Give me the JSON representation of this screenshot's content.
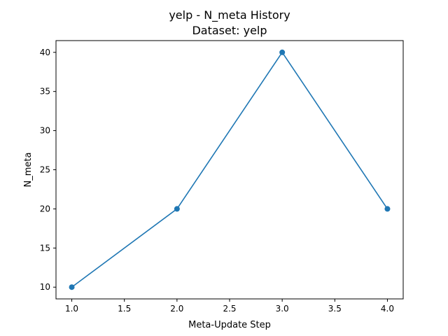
{
  "chart_data": {
    "type": "line",
    "title": "yelp - N_meta History",
    "subtitle": "Dataset: yelp",
    "xlabel": "Meta-Update Step",
    "ylabel": "N_meta",
    "x": [
      1.0,
      2.0,
      3.0,
      4.0
    ],
    "series": [
      {
        "values": [
          10,
          20,
          40,
          20
        ],
        "color": "#1f77b4",
        "marker": "circle"
      }
    ],
    "xlim": [
      0.85,
      4.15
    ],
    "ylim": [
      8.5,
      41.5
    ],
    "xticks": [
      1.0,
      1.5,
      2.0,
      2.5,
      3.0,
      3.5,
      4.0
    ],
    "xtick_labels": [
      "1.0",
      "1.5",
      "2.0",
      "2.5",
      "3.0",
      "3.5",
      "4.0"
    ],
    "yticks": [
      10,
      15,
      20,
      25,
      30,
      35,
      40
    ],
    "ytick_labels": [
      "10",
      "15",
      "20",
      "25",
      "30",
      "35",
      "40"
    ],
    "grid": false,
    "legend": "none"
  }
}
